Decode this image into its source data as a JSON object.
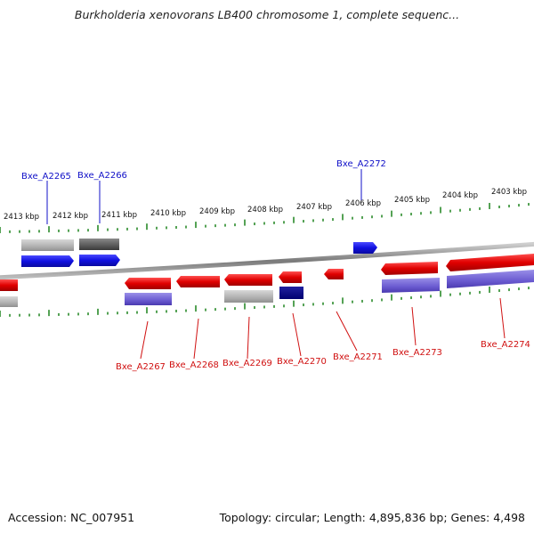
{
  "title": "Burkholderia xenovorans LB400 chromosome 1, complete sequenc...",
  "footer": {
    "accession": "Accession: NC_007951",
    "topology": "Topology: circular; Length: 4,895,836 bp; Genes: 4,498"
  },
  "colors": {
    "forward": "#1010e0",
    "reverse": "#e00000",
    "tick": "#2a8a2a",
    "backbone": "#888888"
  },
  "scale_labels": [
    "2413 kbp",
    "2412 kbp",
    "2411 kbp",
    "2410 kbp",
    "2409 kbp",
    "2408 kbp",
    "2407 kbp",
    "2406 kbp",
    "2405 kbp",
    "2404 kbp",
    "2403 kbp"
  ],
  "genes_top_labels": [
    "Bxe_A2265",
    "Bxe_A2266",
    "Bxe_A2272"
  ],
  "genes_bottom_labels": [
    "Bxe_A2267",
    "Bxe_A2268",
    "Bxe_A2269",
    "Bxe_A2270",
    "Bxe_A2271",
    "Bxe_A2273",
    "Bxe_A2274"
  ]
}
